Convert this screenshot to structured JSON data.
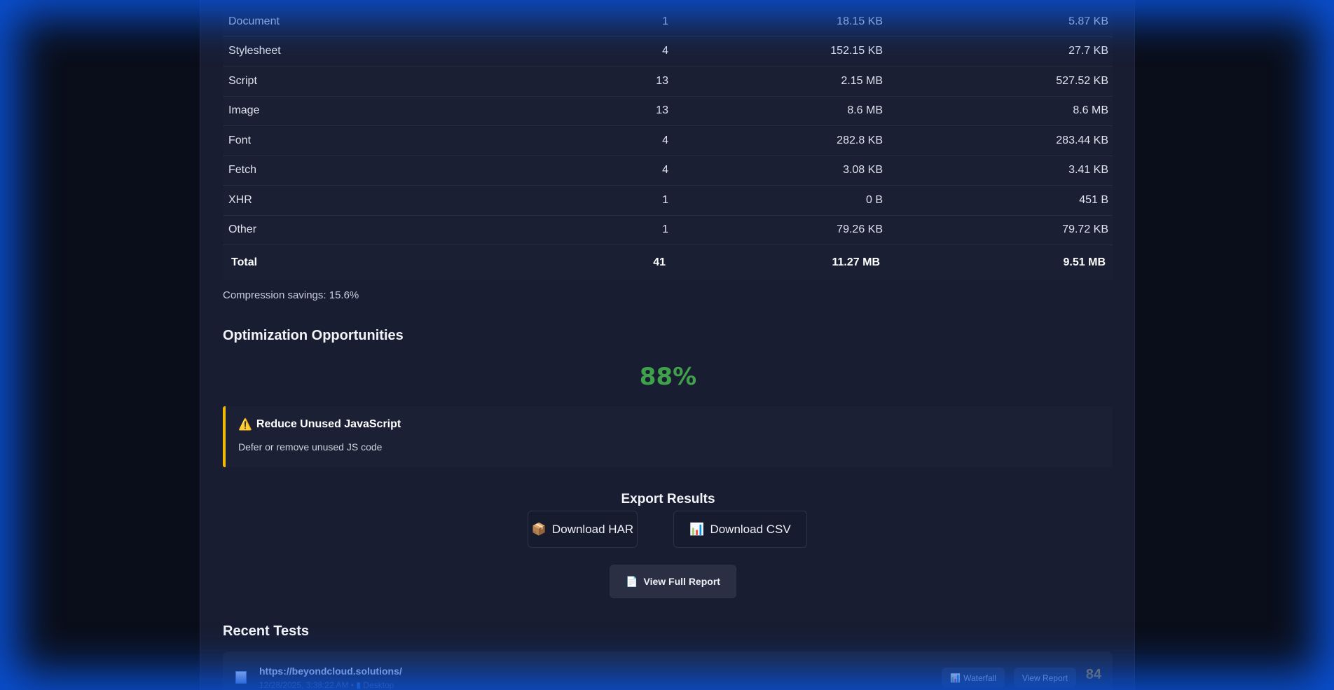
{
  "resource_table": {
    "rows": [
      {
        "type": "Document",
        "count": "1",
        "size": "18.15 KB",
        "transfer": "5.87 KB"
      },
      {
        "type": "Stylesheet",
        "count": "4",
        "size": "152.15 KB",
        "transfer": "27.7 KB"
      },
      {
        "type": "Script",
        "count": "13",
        "size": "2.15 MB",
        "transfer": "527.52 KB"
      },
      {
        "type": "Image",
        "count": "13",
        "size": "8.6 MB",
        "transfer": "8.6 MB"
      },
      {
        "type": "Font",
        "count": "4",
        "size": "282.8 KB",
        "transfer": "283.44 KB"
      },
      {
        "type": "Fetch",
        "count": "4",
        "size": "3.08 KB",
        "transfer": "3.41 KB"
      },
      {
        "type": "XHR",
        "count": "1",
        "size": "0 B",
        "transfer": "451 B"
      },
      {
        "type": "Other",
        "count": "1",
        "size": "79.26 KB",
        "transfer": "79.72 KB"
      }
    ],
    "total": {
      "type": "Total",
      "count": "41",
      "size": "11.27 MB",
      "transfer": "9.51 MB"
    }
  },
  "compression": "Compression savings: 15.6%",
  "optimization": {
    "title": "Optimization Opportunities",
    "score": "88%",
    "score_color": "#3fa14a",
    "items": [
      {
        "icon": "warning-icon",
        "title": "Reduce Unused JavaScript",
        "desc": "Defer or remove unused JS code"
      }
    ]
  },
  "export": {
    "title": "Export Results",
    "har": "Download HAR",
    "csv": "Download CSV",
    "full_report": "View Full Report"
  },
  "recent": {
    "title": "Recent Tests",
    "items": [
      {
        "url": "https://beyondcloud.solutions/",
        "meta": "12/28/2025, 3:38:22 AM •",
        "device": "Desktop",
        "waterfall": "Waterfall",
        "view": "View Report",
        "score": "84"
      }
    ]
  }
}
